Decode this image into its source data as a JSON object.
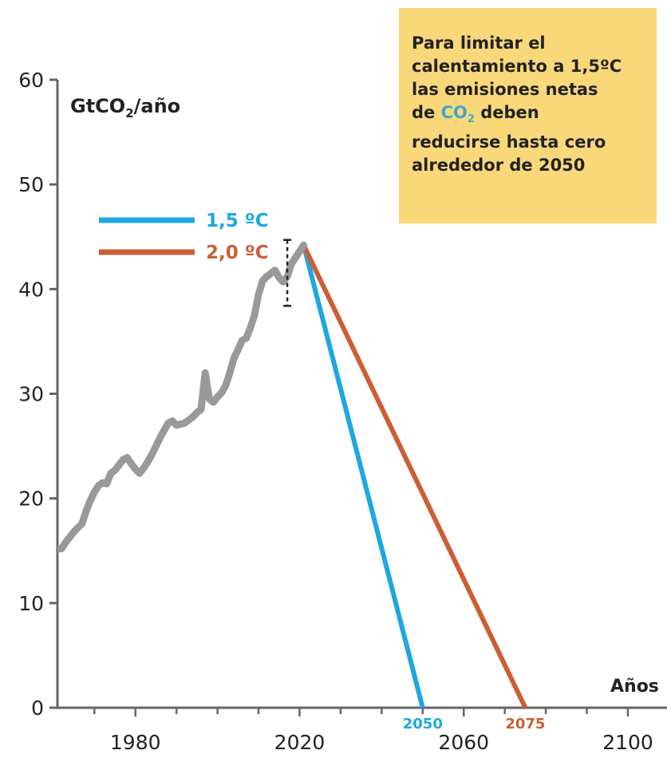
{
  "chart_data": {
    "type": "line",
    "unit_label": {
      "main": "GtCO",
      "sub": "2",
      "rest": "/año"
    },
    "xlabel": "Años",
    "xlim": [
      1961,
      2100
    ],
    "ylim": [
      0,
      60
    ],
    "x_ticks": [
      1980,
      2020,
      2060,
      2100
    ],
    "y_ticks": [
      0,
      10,
      20,
      30,
      40,
      50,
      60
    ],
    "grid": false,
    "legend_position": "top-left",
    "series": [
      {
        "name": "historical",
        "color": "#999999",
        "points": [
          [
            1961,
            15.2
          ],
          [
            1962,
            15.2
          ],
          [
            1963,
            15.8
          ],
          [
            1964,
            16.3
          ],
          [
            1965,
            16.8
          ],
          [
            1966,
            17.2
          ],
          [
            1967,
            17.6
          ],
          [
            1968,
            18.8
          ],
          [
            1969,
            19.8
          ],
          [
            1970,
            20.6
          ],
          [
            1971,
            21.2
          ],
          [
            1972,
            21.5
          ],
          [
            1973,
            21.4
          ],
          [
            1974,
            22.4
          ],
          [
            1975,
            22.7
          ],
          [
            1976,
            23.2
          ],
          [
            1977,
            23.7
          ],
          [
            1978,
            23.9
          ],
          [
            1979,
            23.3
          ],
          [
            1980,
            22.8
          ],
          [
            1981,
            22.4
          ],
          [
            1982,
            22.9
          ],
          [
            1983,
            23.5
          ],
          [
            1984,
            24.2
          ],
          [
            1985,
            25
          ],
          [
            1986,
            25.8
          ],
          [
            1987,
            26.5
          ],
          [
            1988,
            27.2
          ],
          [
            1989,
            27.4
          ],
          [
            1990,
            27
          ],
          [
            1991,
            27.1
          ],
          [
            1992,
            27.2
          ],
          [
            1993,
            27.5
          ],
          [
            1994,
            27.8
          ],
          [
            1995,
            28.2
          ],
          [
            1996,
            28.5
          ],
          [
            1997,
            32
          ],
          [
            1998,
            29.5
          ],
          [
            1999,
            29.2
          ],
          [
            2000,
            29.7
          ],
          [
            2001,
            30.1
          ],
          [
            2002,
            30.8
          ],
          [
            2003,
            32
          ],
          [
            2004,
            33.4
          ],
          [
            2005,
            34.2
          ],
          [
            2006,
            35.1
          ],
          [
            2007,
            35.3
          ],
          [
            2008,
            36.3
          ],
          [
            2009,
            37.5
          ],
          [
            2010,
            39.5
          ],
          [
            2011,
            40.8
          ],
          [
            2012,
            41.2
          ],
          [
            2013,
            41.5
          ],
          [
            2014,
            41.8
          ],
          [
            2015,
            41.1
          ],
          [
            2016,
            40.7
          ],
          [
            2017,
            41.2
          ],
          [
            2018,
            42.4
          ]
        ]
      },
      {
        "name": "1,5 ºC",
        "color": "#1ea7e0",
        "points": [
          [
            2021,
            44.2
          ],
          [
            2050,
            0
          ]
        ]
      },
      {
        "name": "2,0 ºC",
        "color": "#cd5e34",
        "points": [
          [
            2021,
            44.2
          ],
          [
            2075,
            0
          ]
        ]
      }
    ],
    "end_year_labels": [
      {
        "text": "2050",
        "color": "#1ea7e0",
        "x": 2050
      },
      {
        "text": "2075",
        "color": "#cd5e34",
        "x": 2075
      }
    ],
    "uncertainty_bar": {
      "x": 2017,
      "y_low": 38.4,
      "y_high": 44.7
    }
  },
  "callout": {
    "line1": "Para limitar el",
    "line2": "calentamiento a 1,5ºC",
    "line3": "las emisiones netas",
    "line4_pre": "de ",
    "line4_co": "CO",
    "line4_sub": "2",
    "line4_post": " deben",
    "line5": "reducirse hasta cero",
    "line6": "alrededor de 2050",
    "background": "#f9d87a",
    "accent": "#3ca9cc"
  }
}
